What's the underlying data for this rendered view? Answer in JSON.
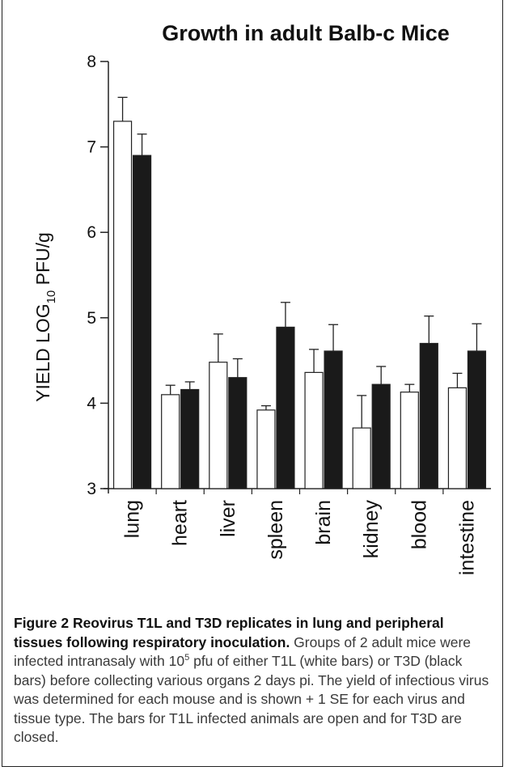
{
  "chart_data": {
    "type": "bar",
    "title": "Growth in adult Balb-c Mice",
    "ylabel": {
      "main": "YIELD  LOG",
      "sub": "10",
      "unit": " PFU/g"
    },
    "xlabel": "",
    "ylim": [
      3,
      8
    ],
    "yticks": [
      "3",
      "4",
      "5",
      "6",
      "7",
      "8"
    ],
    "categories": [
      "lung",
      "heart",
      "liver",
      "spleen",
      "brain",
      "kidney",
      "blood",
      "intestine"
    ],
    "series": [
      {
        "key": "T1L",
        "fill": "#ffffff",
        "values": [
          7.3,
          4.1,
          4.48,
          3.92,
          4.36,
          3.71,
          4.13,
          4.18
        ],
        "errors": [
          0.28,
          0.11,
          0.33,
          0.05,
          0.27,
          0.38,
          0.09,
          0.17
        ]
      },
      {
        "key": "T3D",
        "fill": "#1a1a1a",
        "values": [
          6.9,
          4.16,
          4.3,
          4.89,
          4.61,
          4.22,
          4.7,
          4.61
        ],
        "errors": [
          0.25,
          0.09,
          0.22,
          0.29,
          0.31,
          0.21,
          0.32,
          0.32
        ]
      }
    ],
    "grid": false,
    "legend": "none"
  },
  "caption": {
    "figure_label": "Figure 2",
    "bold_title": " Reovirus T1L and T3D replicates in lung and peripheral tissues following respiratory inoculation.",
    "text_before_sup": " Groups of 2 adult mice were infected intranasaly with 10",
    "sup": "5",
    "text_after_sup": " pfu of either T1L (white bars) or T3D (black bars) before collecting various organs 2 days pi. The yield of infectious virus was determined for each mouse and is shown + 1 SE for each virus and tissue type. The bars for T1L infected animals are open and for T3D are closed."
  }
}
